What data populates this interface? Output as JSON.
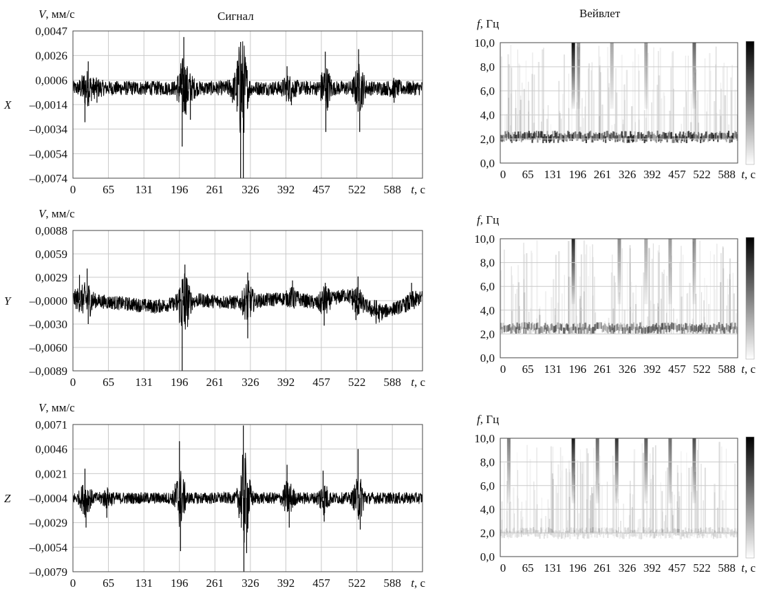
{
  "headers": {
    "signal_title": "Сигнал",
    "wavelet_title": "Вейвлет"
  },
  "signal_axis": {
    "y_unit": "мм/с",
    "y_var": "V",
    "x_unit": "с",
    "x_var": "t"
  },
  "wavelet_axis": {
    "y_unit": "Гц",
    "y_var": "f",
    "x_unit": "с",
    "x_var": "t"
  },
  "chart_data": [
    {
      "type": "line",
      "panel": "signal",
      "channel": "X",
      "ylabel": "V, мм/с",
      "xlabel": "t, с",
      "xticks": [
        "0",
        "65",
        "131",
        "196",
        "261",
        "326",
        "392",
        "457",
        "522",
        "588"
      ],
      "yticks": [
        "0,0047",
        "0,0026",
        "0,0006",
        "–0,0014",
        "–0,0034",
        "–0,0054",
        "–0,0074"
      ],
      "xlim": [
        0,
        640
      ],
      "ylim": [
        -0.0074,
        0.0047
      ],
      "grid": true,
      "baseline": 0.0,
      "noise_amp": 0.0006,
      "bursts": [
        {
          "t": 22,
          "v": -0.0028
        },
        {
          "t": 28,
          "v": 0.0022
        },
        {
          "t": 44,
          "v": -0.0012
        },
        {
          "t": 200,
          "v": -0.0048
        },
        {
          "t": 203,
          "v": 0.0042
        },
        {
          "t": 215,
          "v": -0.0026
        },
        {
          "t": 292,
          "v": -0.0012
        },
        {
          "t": 307,
          "v": 0.0038
        },
        {
          "t": 307,
          "v": -0.0074
        },
        {
          "t": 312,
          "v": -0.0074
        },
        {
          "t": 392,
          "v": 0.0018
        },
        {
          "t": 400,
          "v": -0.0014
        },
        {
          "t": 462,
          "v": 0.003
        },
        {
          "t": 463,
          "v": -0.0036
        },
        {
          "t": 523,
          "v": 0.0032
        },
        {
          "t": 525,
          "v": -0.0036
        },
        {
          "t": 588,
          "v": -0.0012
        }
      ]
    },
    {
      "type": "line",
      "panel": "signal",
      "channel": "Y",
      "ylabel": "V, мм/с",
      "xlabel": "t, с",
      "xticks": [
        "0",
        "65",
        "131",
        "196",
        "261",
        "326",
        "392",
        "457",
        "522",
        "588"
      ],
      "yticks": [
        "0,0088",
        "0,0059",
        "0,0029",
        "–0,0000",
        "–0,0030",
        "–0,0060",
        "–0,0089"
      ],
      "xlim": [
        0,
        640
      ],
      "ylim": [
        -0.0089,
        0.0088
      ],
      "grid": true,
      "baseline": 0.0,
      "noise_amp": 0.0009,
      "bursts": [
        {
          "t": 12,
          "v": 0.0032
        },
        {
          "t": 26,
          "v": 0.004
        },
        {
          "t": 28,
          "v": -0.003
        },
        {
          "t": 200,
          "v": -0.0089
        },
        {
          "t": 205,
          "v": 0.0045
        },
        {
          "t": 205,
          "v": -0.003
        },
        {
          "t": 210,
          "v": -0.002
        },
        {
          "t": 320,
          "v": 0.0035
        },
        {
          "t": 320,
          "v": -0.0048
        },
        {
          "t": 402,
          "v": 0.0025
        },
        {
          "t": 460,
          "v": -0.0032
        },
        {
          "t": 462,
          "v": 0.0022
        },
        {
          "t": 518,
          "v": -0.0025
        },
        {
          "t": 522,
          "v": 0.003
        },
        {
          "t": 555,
          "v": -0.0028
        },
        {
          "t": 620,
          "v": 0.0022
        }
      ],
      "drift": [
        [
          0,
          0.0002
        ],
        [
          60,
          -0.0002
        ],
        [
          150,
          -0.0008
        ],
        [
          230,
          0.0
        ],
        [
          300,
          -0.0003
        ],
        [
          400,
          0.0003
        ],
        [
          450,
          -0.0004
        ],
        [
          500,
          0.0007
        ],
        [
          560,
          -0.0016
        ],
        [
          600,
          -0.0008
        ],
        [
          640,
          0.0004
        ]
      ]
    },
    {
      "type": "line",
      "panel": "signal",
      "channel": "Z",
      "ylabel": "V, мм/с",
      "xlabel": "t, с",
      "xticks": [
        "0",
        "65",
        "131",
        "196",
        "261",
        "326",
        "392",
        "457",
        "522",
        "588"
      ],
      "yticks": [
        "0,0071",
        "0,0046",
        "0,0021",
        "–0,0004",
        "–0,0029",
        "–0,0054",
        "–0,0079"
      ],
      "xlim": [
        0,
        640
      ],
      "ylim": [
        -0.0079,
        0.0071
      ],
      "grid": true,
      "baseline": -0.0004,
      "noise_amp": 0.0006,
      "bursts": [
        {
          "t": 22,
          "v": 0.0026
        },
        {
          "t": 24,
          "v": -0.0034
        },
        {
          "t": 62,
          "v": -0.0024
        },
        {
          "t": 195,
          "v": 0.0054
        },
        {
          "t": 197,
          "v": -0.0058
        },
        {
          "t": 312,
          "v": 0.007
        },
        {
          "t": 313,
          "v": -0.0079
        },
        {
          "t": 318,
          "v": -0.006
        },
        {
          "t": 392,
          "v": 0.003
        },
        {
          "t": 396,
          "v": -0.0034
        },
        {
          "t": 458,
          "v": 0.0024
        },
        {
          "t": 460,
          "v": -0.0028
        },
        {
          "t": 522,
          "v": 0.0046
        },
        {
          "t": 526,
          "v": -0.0036
        }
      ]
    },
    {
      "type": "heatmap",
      "panel": "wavelet",
      "channel": "X",
      "ylabel": "f, Гц",
      "xlabel": "t, с",
      "xticks": [
        "0",
        "65",
        "131",
        "196",
        "261",
        "326",
        "392",
        "457",
        "522",
        "588"
      ],
      "yticks": [
        "10,0",
        "8,0",
        "6,0",
        "4,0",
        "2,0",
        "0,0"
      ],
      "xlim": [
        0,
        640
      ],
      "ylim": [
        0,
        10
      ],
      "grid": true,
      "colorbar": "right",
      "band": {
        "f": 2.2,
        "intensity": 0.8
      },
      "streaks": [
        [
          196,
          0.95
        ],
        [
          210,
          0.4
        ],
        [
          300,
          0.35
        ],
        [
          392,
          0.4
        ],
        [
          522,
          0.6
        ]
      ]
    },
    {
      "type": "heatmap",
      "panel": "wavelet",
      "channel": "Y",
      "ylabel": "f, Гц",
      "xlabel": "t, с",
      "xticks": [
        "0",
        "65",
        "131",
        "196",
        "261",
        "326",
        "392",
        "457",
        "522",
        "588"
      ],
      "yticks": [
        "10,0",
        "8,0",
        "6,0",
        "4,0",
        "2,0",
        "0,0"
      ],
      "xlim": [
        0,
        640
      ],
      "ylim": [
        0,
        10
      ],
      "grid": true,
      "colorbar": "right",
      "band": {
        "f": 2.5,
        "intensity": 0.55
      },
      "streaks": [
        [
          196,
          0.85
        ],
        [
          320,
          0.45
        ],
        [
          392,
          0.35
        ],
        [
          457,
          0.4
        ],
        [
          522,
          0.45
        ]
      ]
    },
    {
      "type": "heatmap",
      "panel": "wavelet",
      "channel": "Z",
      "ylabel": "f, Гц",
      "xlabel": "t, с",
      "xticks": [
        "0",
        "65",
        "131",
        "196",
        "261",
        "326",
        "392",
        "457",
        "522",
        "588"
      ],
      "yticks": [
        "10,0",
        "8,0",
        "6,0",
        "4,0",
        "2,0",
        "0,0"
      ],
      "xlim": [
        0,
        640
      ],
      "ylim": [
        0,
        10
      ],
      "grid": true,
      "colorbar": "right",
      "band": {
        "f": 2.0,
        "intensity": 0.15
      },
      "streaks": [
        [
          22,
          0.5
        ],
        [
          196,
          0.9
        ],
        [
          261,
          0.6
        ],
        [
          313,
          0.8
        ],
        [
          392,
          0.65
        ],
        [
          457,
          0.55
        ],
        [
          522,
          0.7
        ]
      ]
    }
  ]
}
